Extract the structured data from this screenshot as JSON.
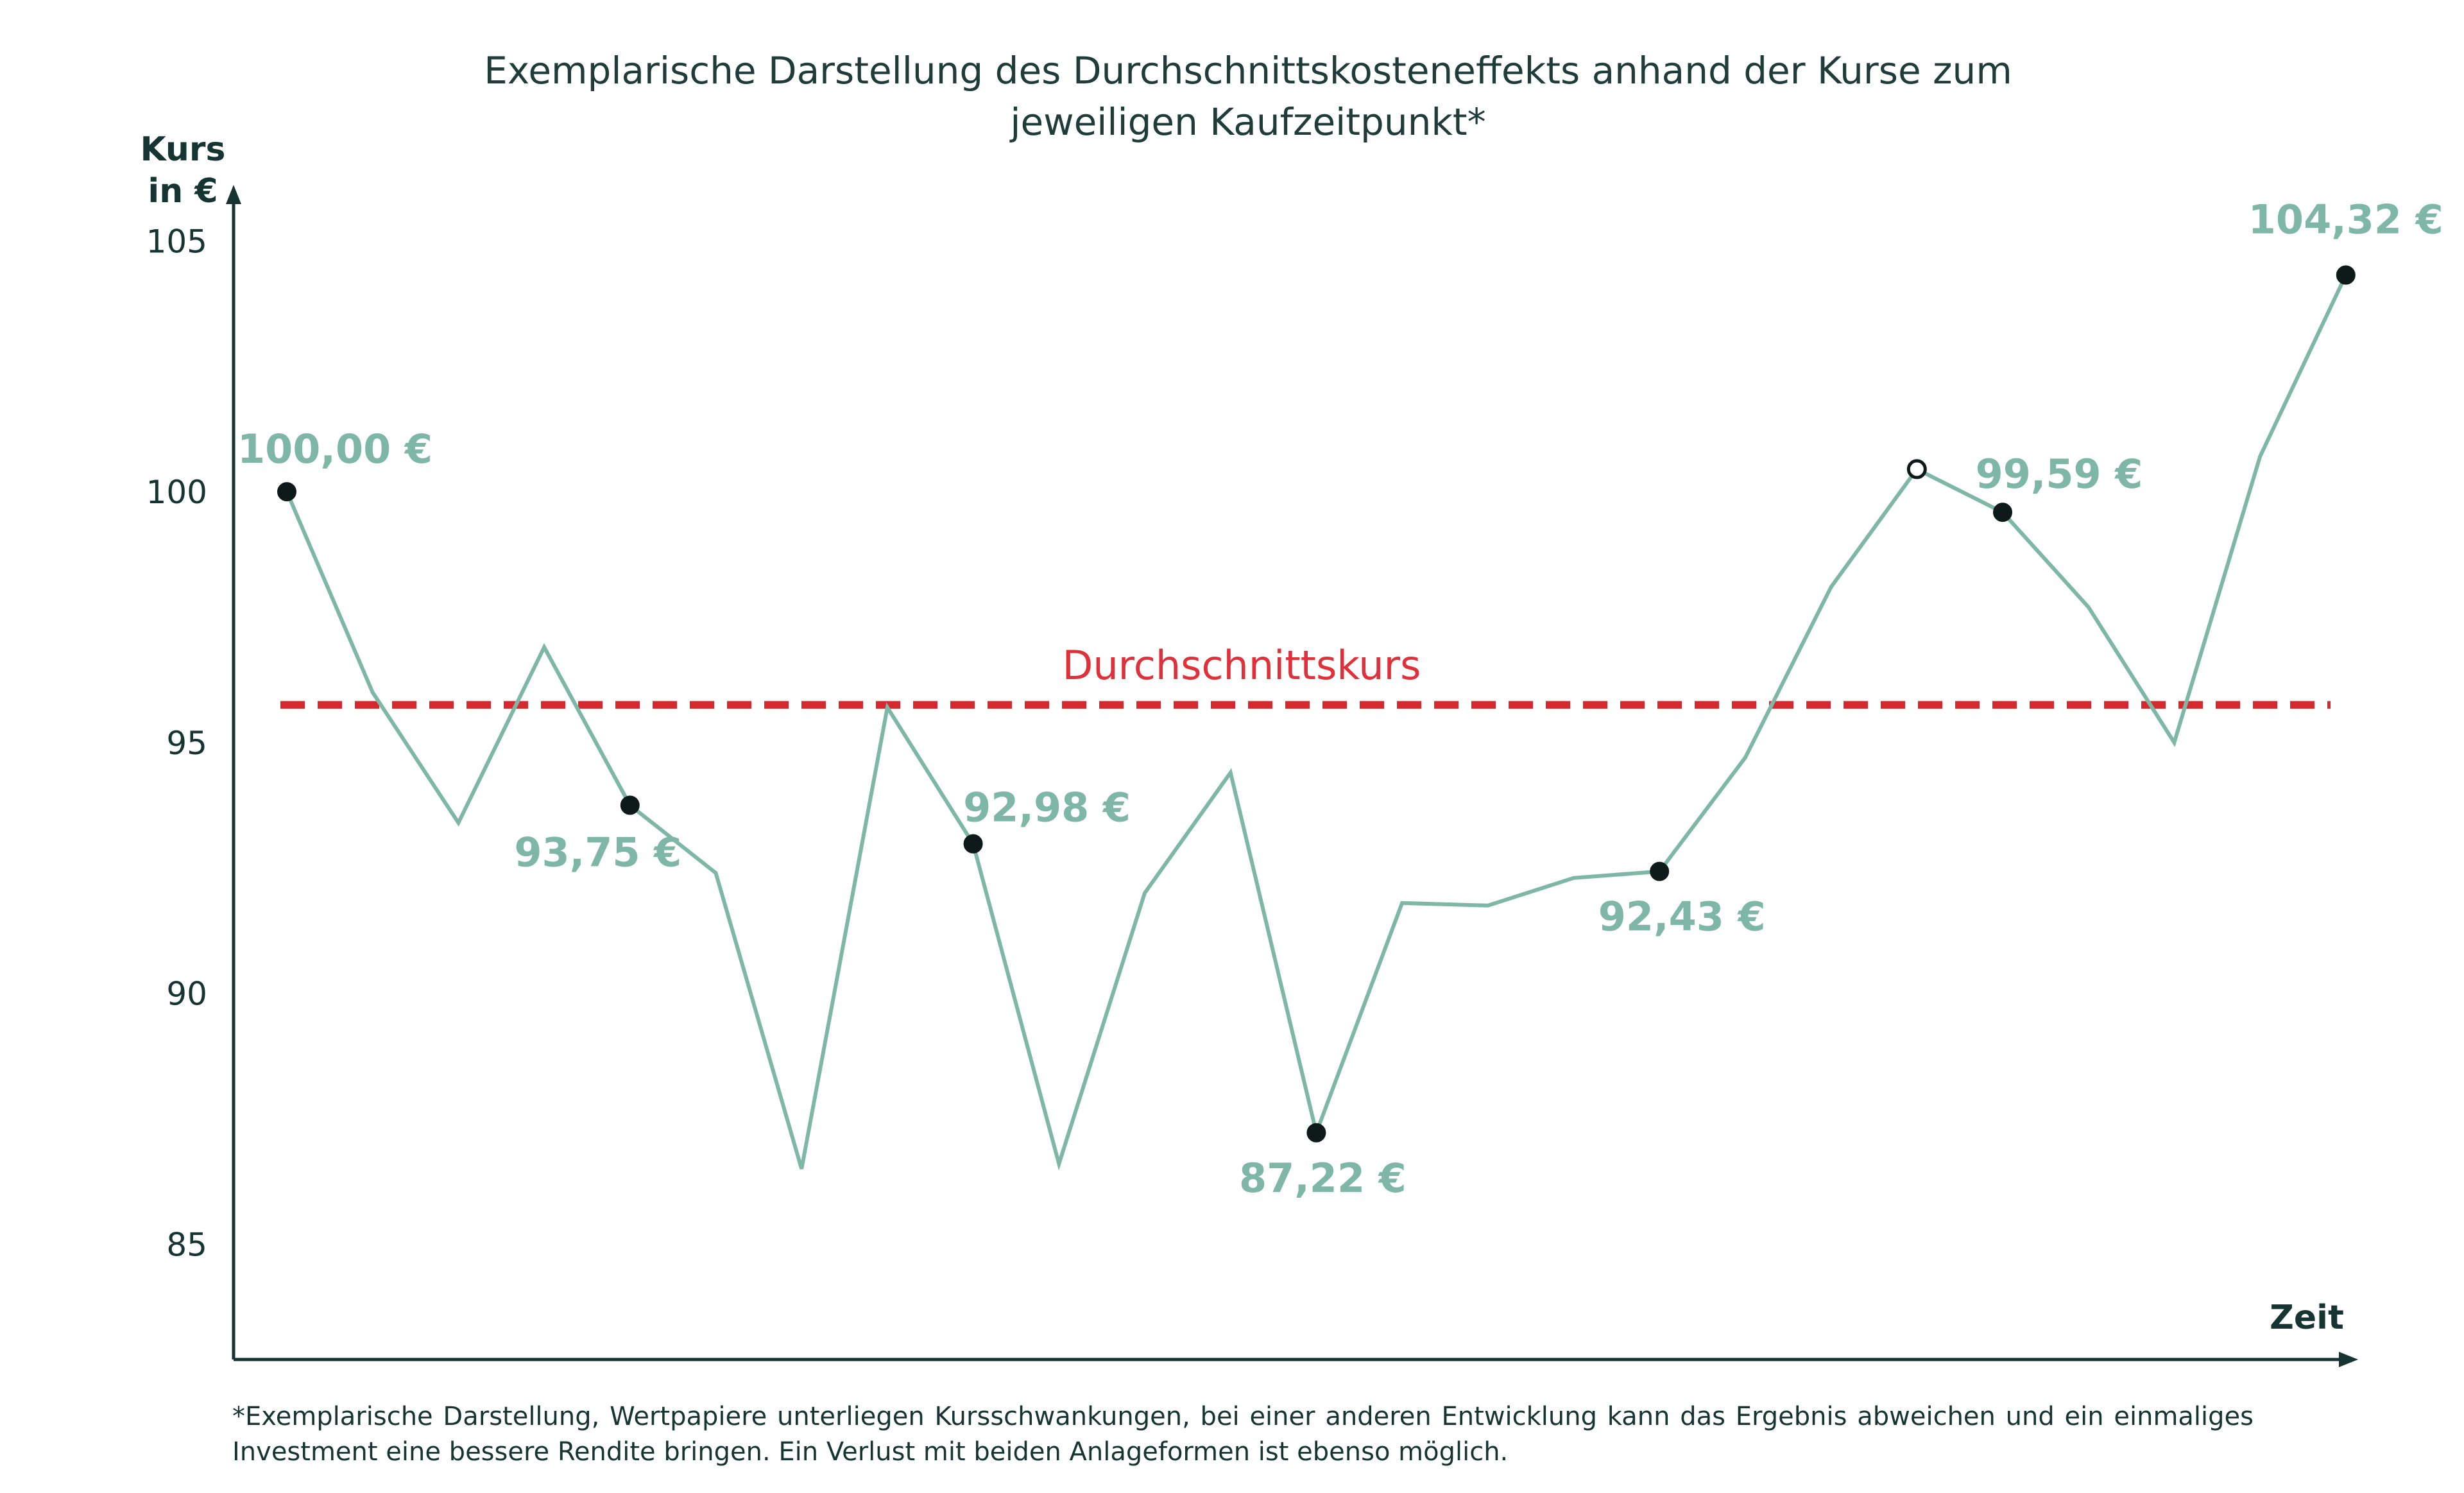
{
  "chart_data": {
    "type": "line",
    "title": "Exemplarische Darstellung des Durchschnittskosteneffekts anhand der Kurse zum jeweiligen Kaufzeitpunkt*",
    "title_lines": [
      "Exemplarische Darstellung des Durchschnittskosteneffekts anhand der Kurse zum",
      "jeweiligen Kaufzeitpunkt*"
    ],
    "ylabel_lines": [
      "Kurs",
      "in €"
    ],
    "xlabel": "Zeit",
    "ylim": [
      82.7,
      105.9
    ],
    "yticks": [
      105,
      100,
      95,
      90,
      85
    ],
    "grid": false,
    "series": [
      {
        "color": "#7fb7a6",
        "x": [
          1,
          2,
          3,
          4,
          5,
          6,
          7,
          8,
          9,
          10,
          11,
          12,
          13,
          14,
          15,
          16,
          17,
          18,
          19,
          20,
          21,
          22,
          23,
          24,
          25
        ],
        "values": [
          100.0,
          96.0,
          93.4,
          96.9,
          93.75,
          92.4,
          86.5,
          95.7,
          92.98,
          86.6,
          92.0,
          94.4,
          87.22,
          91.8,
          91.75,
          92.3,
          92.43,
          94.7,
          98.1,
          100.45,
          99.59,
          97.7,
          95.0,
          100.7,
          104.32
        ]
      }
    ],
    "markers": [
      {
        "x": 1,
        "y": 100.0,
        "label": "100,00 €",
        "filled": true
      },
      {
        "x": 5,
        "y": 93.75,
        "label": "93,75 €",
        "filled": true
      },
      {
        "x": 9,
        "y": 92.98,
        "label": "92,98 €",
        "filled": true
      },
      {
        "x": 13,
        "y": 87.22,
        "label": "87,22 €",
        "filled": true
      },
      {
        "x": 17,
        "y": 92.43,
        "label": "92,43 €",
        "filled": true
      },
      {
        "x": 20,
        "y": 100.45,
        "label": "",
        "filled": false
      },
      {
        "x": 21,
        "y": 99.59,
        "label": "99,59 €",
        "filled": true
      },
      {
        "x": 25,
        "y": 104.32,
        "label": "104,32 €",
        "filled": true
      }
    ],
    "average": {
      "value": 95.75,
      "label": "Durchschnittskurs",
      "color": "#d42a2f"
    }
  },
  "footnote": "*Exemplarische Darstellung, Wertpapiere unterliegen Kursschwankungen, bei einer anderen Entwicklung kann das Ergebnis abweichen und ein einmaliges Investment eine bessere Rendite bringen. Ein Verlust mit beiden Anlageformen ist ebenso möglich."
}
